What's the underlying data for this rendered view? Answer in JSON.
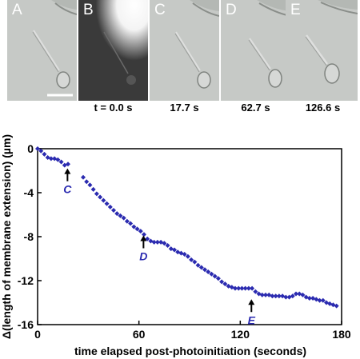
{
  "panels": [
    {
      "letter": "A",
      "time": "",
      "style": "dic"
    },
    {
      "letter": "B",
      "time": "t = 0.0 s",
      "style": "fluorescence"
    },
    {
      "letter": "C",
      "time": "17.7 s",
      "style": "dic"
    },
    {
      "letter": "D",
      "time": "62.7 s",
      "style": "dic"
    },
    {
      "letter": "E",
      "time": "126.6 s",
      "style": "dic"
    }
  ],
  "chart_data": {
    "type": "scatter",
    "xlabel": "time elapsed post-photoinitiation (seconds)",
    "ylabel": "Δ(length of membrane extension) (µm)",
    "xlim": [
      0,
      180
    ],
    "ylim": [
      -16,
      0
    ],
    "xticks": [
      "0",
      "60",
      "120",
      "180"
    ],
    "yticks": [
      "0",
      "-4",
      "-8",
      "-12",
      "-16"
    ],
    "marker_color": "#2b2bb0",
    "annotations": [
      {
        "text": "C",
        "x": 17.7,
        "y": -1.5
      },
      {
        "text": "D",
        "x": 62.7,
        "y": -7.6
      },
      {
        "text": "E",
        "x": 126.6,
        "y": -13.4
      }
    ],
    "series": [
      {
        "x": [
          0,
          2,
          4,
          6,
          8,
          10,
          12,
          14,
          16,
          18,
          27,
          29,
          31,
          33,
          35,
          37,
          39,
          41,
          43,
          45,
          47,
          49,
          51,
          53,
          55,
          57,
          59,
          61,
          63,
          65,
          67,
          69,
          71,
          73,
          75,
          77,
          79,
          81,
          83,
          85,
          87,
          89,
          91,
          93,
          95,
          97,
          99,
          101,
          103,
          105,
          107,
          109,
          111,
          113,
          115,
          117,
          119,
          121,
          123,
          125,
          127,
          129,
          131,
          133,
          135,
          137,
          139,
          141,
          143,
          145,
          147,
          149,
          151,
          153,
          155,
          157,
          159,
          161,
          163,
          165,
          167,
          169,
          171,
          173,
          175,
          177
        ],
        "y": [
          0,
          -0.2,
          -0.5,
          -0.8,
          -0.9,
          -0.9,
          -1.0,
          -1.2,
          -1.5,
          -1.4,
          -2.6,
          -3.0,
          -3.3,
          -3.7,
          -4.1,
          -4.4,
          -4.7,
          -5.0,
          -5.3,
          -5.6,
          -5.9,
          -6.1,
          -6.3,
          -6.6,
          -6.8,
          -7.1,
          -7.3,
          -7.5,
          -7.8,
          -8.2,
          -8.4,
          -8.5,
          -8.5,
          -8.5,
          -8.6,
          -8.8,
          -9.1,
          -9.2,
          -9.4,
          -9.5,
          -9.6,
          -9.8,
          -10.1,
          -10.3,
          -10.6,
          -10.8,
          -11.0,
          -11.2,
          -11.4,
          -11.6,
          -11.8,
          -12.1,
          -12.3,
          -12.5,
          -12.6,
          -12.7,
          -12.7,
          -12.7,
          -12.7,
          -12.7,
          -12.7,
          -13.0,
          -13.2,
          -13.3,
          -13.3,
          -13.3,
          -13.4,
          -13.4,
          -13.4,
          -13.4,
          -13.5,
          -13.5,
          -13.4,
          -13.2,
          -13.2,
          -13.3,
          -13.5,
          -13.6,
          -13.6,
          -13.7,
          -13.8,
          -13.8,
          -14.0,
          -14.1,
          -14.2,
          -14.3
        ]
      }
    ]
  }
}
